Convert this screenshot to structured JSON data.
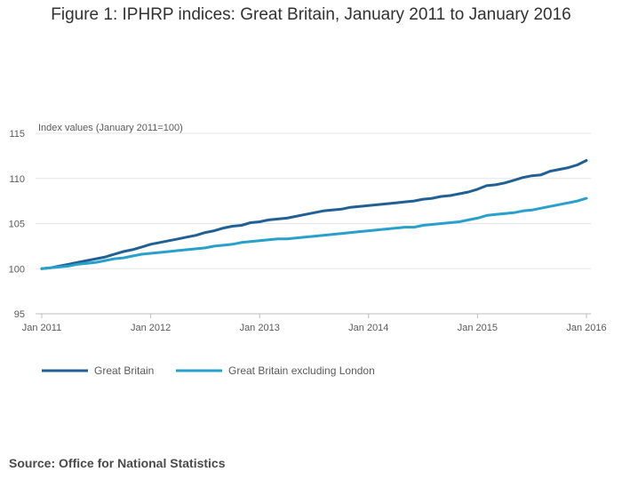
{
  "title": "Figure 1: IPHRP indices: Great Britain, January 2011 to January 2016",
  "source": "Source: Office for National Statistics",
  "chart_data": {
    "type": "line",
    "ylabel": "Index values (January 2011=100)",
    "ylim": [
      95,
      115
    ],
    "yticks": [
      95,
      100,
      105,
      110,
      115
    ],
    "xlim": [
      0,
      60
    ],
    "xticks": [
      {
        "month": 0,
        "label": "Jan 2011"
      },
      {
        "month": 12,
        "label": "Jan 2012"
      },
      {
        "month": 24,
        "label": "Jan 2013"
      },
      {
        "month": 36,
        "label": "Jan 2014"
      },
      {
        "month": 48,
        "label": "Jan 2015"
      },
      {
        "month": 60,
        "label": "Jan 2016"
      }
    ],
    "grid": true,
    "legend_position": "bottom-left",
    "series": [
      {
        "name": "Great Britain",
        "color": "#206095",
        "values": [
          100.0,
          100.1,
          100.3,
          100.5,
          100.7,
          100.9,
          101.1,
          101.3,
          101.6,
          101.9,
          102.1,
          102.4,
          102.7,
          102.9,
          103.1,
          103.3,
          103.5,
          103.7,
          104.0,
          104.2,
          104.5,
          104.7,
          104.8,
          105.1,
          105.2,
          105.4,
          105.5,
          105.6,
          105.8,
          106.0,
          106.2,
          106.4,
          106.5,
          106.6,
          106.8,
          106.9,
          107.0,
          107.1,
          107.2,
          107.3,
          107.4,
          107.5,
          107.7,
          107.8,
          108.0,
          108.1,
          108.3,
          108.5,
          108.8,
          109.2,
          109.3,
          109.5,
          109.8,
          110.1,
          110.3,
          110.4,
          110.8,
          111.0,
          111.2,
          111.5,
          112.0
        ]
      },
      {
        "name": "Great Britain excluding London",
        "color": "#27a0cc",
        "values": [
          100.0,
          100.1,
          100.2,
          100.3,
          100.5,
          100.6,
          100.7,
          100.9,
          101.1,
          101.2,
          101.4,
          101.6,
          101.7,
          101.8,
          101.9,
          102.0,
          102.1,
          102.2,
          102.3,
          102.5,
          102.6,
          102.7,
          102.9,
          103.0,
          103.1,
          103.2,
          103.3,
          103.3,
          103.4,
          103.5,
          103.6,
          103.7,
          103.8,
          103.9,
          104.0,
          104.1,
          104.2,
          104.3,
          104.4,
          104.5,
          104.6,
          104.6,
          104.8,
          104.9,
          105.0,
          105.1,
          105.2,
          105.4,
          105.6,
          105.9,
          106.0,
          106.1,
          106.2,
          106.4,
          106.5,
          106.7,
          106.9,
          107.1,
          107.3,
          107.5,
          107.8
        ]
      }
    ]
  }
}
